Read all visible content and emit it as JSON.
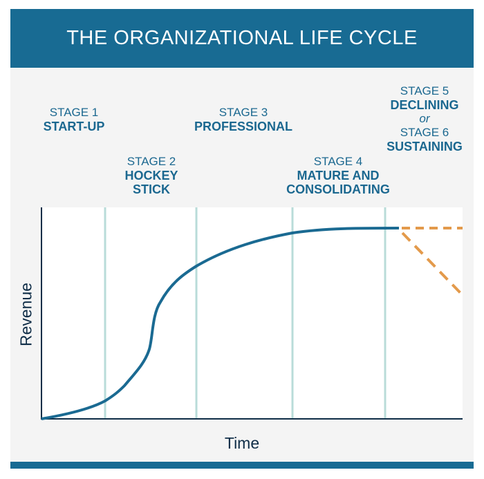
{
  "title": "THE ORGANIZATIONAL LIFE CYCLE",
  "colors": {
    "header": "#186b93",
    "text": "#1b6890",
    "curve": "#1a6a92",
    "gridlines": "#b9dcd9",
    "projection": "#e39a4b",
    "axis": "#0f2d47"
  },
  "chart_data": {
    "type": "line",
    "title": "THE ORGANIZATIONAL LIFE CYCLE",
    "xlabel": "Time",
    "ylabel": "Revenue",
    "grid": "vertical stage dividers",
    "stages": [
      {
        "num": "STAGE 1",
        "name": "START-UP"
      },
      {
        "num": "STAGE 2",
        "name": "HOCKEY",
        "name2": "STICK"
      },
      {
        "num": "STAGE 3",
        "name": "PROFESSIONAL"
      },
      {
        "num": "STAGE 4",
        "name": "MATURE AND",
        "name2": "CONSOLIDATING"
      },
      {
        "num": "STAGE 5",
        "name": "DECLINING",
        "or": "or",
        "num2": "STAGE 6",
        "name2": "SUSTAINING"
      }
    ],
    "curve": "S-curve rising then plateauing",
    "projections": [
      "flat dashed (sustaining)",
      "declining dashed (declining)"
    ]
  }
}
